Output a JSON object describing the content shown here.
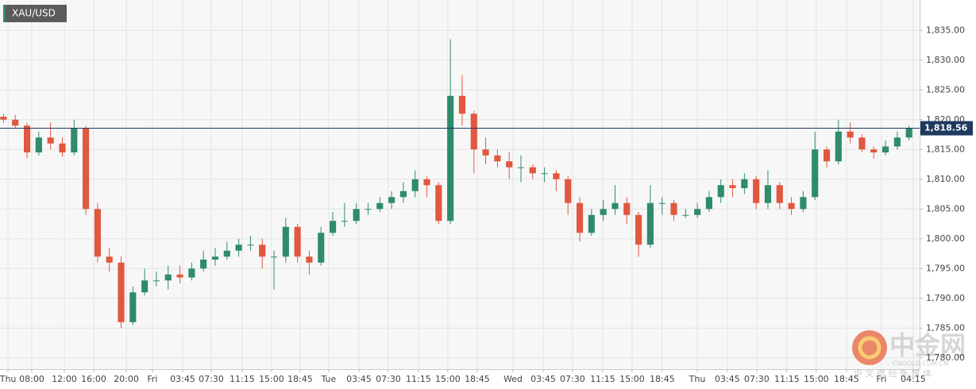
{
  "chart_data": {
    "type": "candlestick",
    "title": "XAU/USD",
    "x": [
      0,
      1,
      2,
      3,
      4,
      5,
      6,
      7,
      8,
      9,
      10,
      11,
      12,
      13,
      14,
      15,
      16,
      17,
      18,
      19,
      20,
      21,
      22,
      23,
      24,
      25,
      26,
      27,
      28,
      29,
      30,
      31,
      32,
      33,
      34,
      35,
      36,
      37,
      38,
      39,
      40,
      41,
      42,
      43,
      44,
      45,
      46,
      47,
      48,
      49,
      50,
      51,
      52,
      53,
      54,
      55,
      56,
      57,
      58,
      59,
      60,
      61,
      62,
      63,
      64,
      65,
      66,
      67,
      68,
      69,
      70,
      71,
      72,
      73,
      74,
      75,
      76,
      77
    ],
    "open": [
      1820.5,
      1820,
      1819,
      1814.5,
      1817,
      1816,
      1814.5,
      1818.5,
      1805,
      1797,
      1796,
      1786,
      1791,
      1793,
      1793,
      1794,
      1793.5,
      1795,
      1796.5,
      1797,
      1798,
      1799,
      1799,
      1797,
      1797,
      1802,
      1797,
      1796,
      1801,
      1803,
      1803,
      1805,
      1805,
      1806,
      1807,
      1808,
      1810,
      1809,
      1803,
      1824,
      1821,
      1815,
      1814,
      1813,
      1812,
      1812,
      1811,
      1811,
      1810,
      1806,
      1801,
      1804,
      1805,
      1806,
      1804,
      1799,
      1806,
      1806,
      1804,
      1804,
      1805,
      1807,
      1809,
      1808.5,
      1810,
      1806,
      1809,
      1806,
      1805,
      1807,
      1815,
      1813,
      1818,
      1817,
      1815,
      1814.5,
      1815.5,
      1817
    ],
    "high": [
      1821,
      1820.8,
      1819.5,
      1818,
      1819.5,
      1817,
      1820,
      1819,
      1806,
      1798.5,
      1797,
      1792,
      1795,
      1794.5,
      1795.5,
      1795.5,
      1796,
      1798,
      1798.5,
      1799.5,
      1800,
      1800.5,
      1800,
      1798,
      1803.5,
      1802.5,
      1798,
      1802,
      1804.5,
      1806,
      1806,
      1806,
      1807,
      1808,
      1809.5,
      1811.5,
      1810.5,
      1809.5,
      1833.5,
      1827.5,
      1821.5,
      1817,
      1815,
      1814.5,
      1814,
      1812.5,
      1812,
      1811.5,
      1810.5,
      1807,
      1805,
      1806.5,
      1809,
      1807,
      1804.5,
      1809,
      1807,
      1806.5,
      1805,
      1806,
      1808,
      1810,
      1810,
      1811,
      1810.5,
      1811.5,
      1809.5,
      1807,
      1808,
      1818,
      1815.5,
      1820,
      1819.5,
      1817.5,
      1815.5,
      1816.5,
      1818,
      1819
    ],
    "low": [
      1819.5,
      1818.5,
      1813.5,
      1814,
      1815,
      1813.8,
      1814,
      1804,
      1796,
      1794.5,
      1785,
      1785.5,
      1790.5,
      1792,
      1791.5,
      1792.5,
      1793,
      1794.5,
      1795.5,
      1796.5,
      1797,
      1798,
      1795,
      1791.5,
      1796,
      1796,
      1794,
      1795.5,
      1800.5,
      1802,
      1802.5,
      1804,
      1804.5,
      1805,
      1806,
      1807,
      1807,
      1802.5,
      1802.5,
      1819,
      1811,
      1812.5,
      1812,
      1810,
      1809.5,
      1810,
      1809.5,
      1808,
      1804,
      1799.5,
      1800.5,
      1803,
      1804,
      1802.5,
      1797,
      1798.5,
      1804,
      1803,
      1803.5,
      1803.5,
      1804.5,
      1806,
      1807,
      1807.5,
      1805,
      1805,
      1805,
      1804,
      1804.5,
      1806.5,
      1812,
      1812.5,
      1816,
      1814.5,
      1813.5,
      1814,
      1815,
      1816.5
    ],
    "close": [
      1820,
      1819,
      1814.5,
      1817,
      1816,
      1814.5,
      1818.5,
      1805,
      1797,
      1796,
      1786,
      1791,
      1793,
      1793,
      1794,
      1793.5,
      1795,
      1796.5,
      1797,
      1798,
      1799,
      1799,
      1797,
      1797,
      1802,
      1797,
      1796,
      1801,
      1803,
      1803,
      1805,
      1805,
      1806,
      1807,
      1808,
      1810,
      1809,
      1803,
      1824,
      1821,
      1815,
      1814,
      1813,
      1812,
      1812,
      1811,
      1811,
      1810,
      1806,
      1801,
      1804,
      1805,
      1806,
      1804,
      1799,
      1806,
      1806,
      1804,
      1804,
      1805,
      1807,
      1809,
      1808.5,
      1810,
      1806,
      1809,
      1806,
      1805,
      1807,
      1815,
      1813,
      1818,
      1817,
      1815,
      1814.5,
      1815.5,
      1817,
      1818.56
    ],
    "up_color": "#2e8b6c",
    "down_color": "#e0583f",
    "xlim": [
      -0.3,
      77.9
    ],
    "ylim": [
      1778.1,
      1840.1
    ],
    "xticks": [
      {
        "value": 0.38,
        "label": "Thu"
      },
      {
        "value": 2.4,
        "label": "08:00"
      },
      {
        "value": 5.17,
        "label": "12:00"
      },
      {
        "value": 7.67,
        "label": "16:00"
      },
      {
        "value": 10.44,
        "label": "20:00"
      },
      {
        "value": 12.66,
        "label": "Fri"
      },
      {
        "value": 15.23,
        "label": "03:45"
      },
      {
        "value": 17.66,
        "label": "07:30"
      },
      {
        "value": 20.29,
        "label": "11:15"
      },
      {
        "value": 22.79,
        "label": "15:00"
      },
      {
        "value": 25.22,
        "label": "18:45"
      },
      {
        "value": 27.65,
        "label": "Tue"
      },
      {
        "value": 30.22,
        "label": "03:45"
      },
      {
        "value": 32.72,
        "label": "07:30"
      },
      {
        "value": 35.28,
        "label": "11:15"
      },
      {
        "value": 37.78,
        "label": "15:00"
      },
      {
        "value": 40.28,
        "label": "18:45"
      },
      {
        "value": 43.32,
        "label": "Wed"
      },
      {
        "value": 45.89,
        "label": "03:45"
      },
      {
        "value": 48.38,
        "label": "07:30"
      },
      {
        "value": 50.95,
        "label": "11:15"
      },
      {
        "value": 53.45,
        "label": "15:00"
      },
      {
        "value": 56.01,
        "label": "18:45"
      },
      {
        "value": 58.99,
        "label": "Thu"
      },
      {
        "value": 61.55,
        "label": "03:45"
      },
      {
        "value": 64.05,
        "label": "07:30"
      },
      {
        "value": 66.61,
        "label": "11:15"
      },
      {
        "value": 69.11,
        "label": "15:00"
      },
      {
        "value": 71.68,
        "label": "18:45"
      },
      {
        "value": 74.65,
        "label": "Fri"
      },
      {
        "value": 77.35,
        "label": "04:15"
      }
    ],
    "yticks": [
      {
        "value": 1780,
        "label": "1,780.00"
      },
      {
        "value": 1785,
        "label": "1,785.00"
      },
      {
        "value": 1790,
        "label": "1,790.00"
      },
      {
        "value": 1795,
        "label": "1,795.00"
      },
      {
        "value": 1800,
        "label": "1,800.00"
      },
      {
        "value": 1805,
        "label": "1,805.00"
      },
      {
        "value": 1810,
        "label": "1,810.00"
      },
      {
        "value": 1815,
        "label": "1,815.00"
      },
      {
        "value": 1820,
        "label": "1,820.00"
      },
      {
        "value": 1825,
        "label": "1,825.00"
      },
      {
        "value": 1830,
        "label": "1,830.00"
      },
      {
        "value": 1835,
        "label": "1,835.00"
      }
    ],
    "grid": true,
    "current_price": {
      "value": 1818.56,
      "label": "1,818.56"
    },
    "watermark": {
      "brand": "中金网",
      "domain": "CNGOLD.COM.CN",
      "slogan": "中 文 财 经 新 媒 体"
    }
  }
}
